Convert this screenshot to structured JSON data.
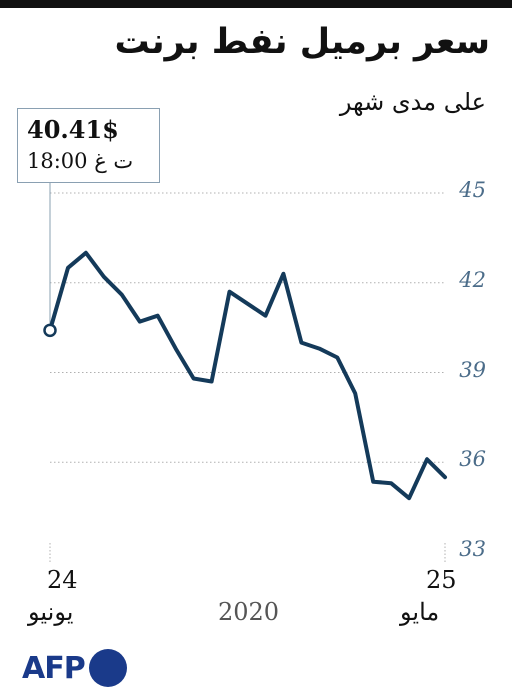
{
  "title": "سعر برميل نفط برنت",
  "subtitle": "على مدى شهر",
  "callout": {
    "price": "40.41$",
    "time": "18:00 ت غ"
  },
  "logo": {
    "text": "AFP"
  },
  "colors": {
    "line": "#143a5a",
    "grid": "#b0b0b0",
    "tick": "#4b6c89"
  },
  "x_labels": {
    "start_day": "24",
    "start_month": "يونيو",
    "end_day": "25",
    "end_month": "مايو",
    "year": "2020"
  },
  "chart_data": {
    "type": "line",
    "title": "سعر برميل نفط برنت",
    "subtitle": "على مدى شهر",
    "xlabel": "",
    "ylabel": "",
    "ylim": [
      33,
      46
    ],
    "yticks": [
      45,
      42,
      39,
      36,
      33
    ],
    "grid": true,
    "x_direction": "right-to-left",
    "x": [
      "2020-05-25",
      "2020-05-26",
      "2020-05-27",
      "2020-05-28",
      "2020-05-29",
      "2020-06-01",
      "2020-06-02",
      "2020-06-03",
      "2020-06-04",
      "2020-06-05",
      "2020-06-08",
      "2020-06-09",
      "2020-06-10",
      "2020-06-11",
      "2020-06-12",
      "2020-06-15",
      "2020-06-16",
      "2020-06-17",
      "2020-06-18",
      "2020-06-19",
      "2020-06-22",
      "2020-06-23",
      "2020-06-24"
    ],
    "series": [
      {
        "values": [
          35.5,
          36.1,
          34.8,
          35.3,
          35.35,
          38.3,
          39.5,
          39.8,
          40.0,
          42.3,
          40.9,
          41.3,
          41.7,
          38.7,
          38.8,
          39.8,
          40.9,
          40.7,
          41.6,
          42.2,
          43.0,
          42.5,
          40.41
        ]
      }
    ],
    "annotation": {
      "date": "2020-06-24",
      "value": 40.41,
      "label": "40.41$",
      "time": "18:00 ت غ"
    }
  }
}
